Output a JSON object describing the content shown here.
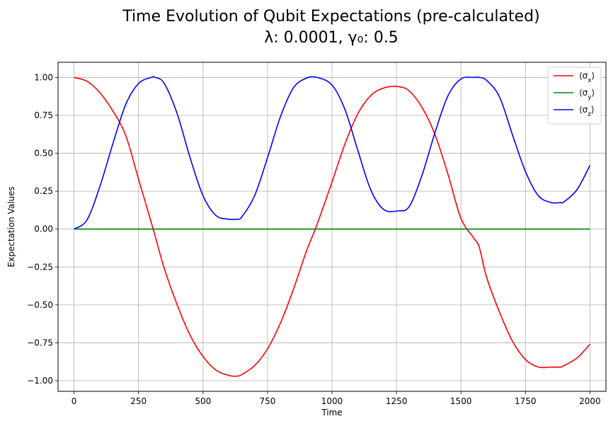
{
  "chart_data": {
    "type": "line",
    "title_line1": "Time Evolution of Qubit Expectations (pre-calculated)",
    "title_line2": "λ: 0.0001, γ₀: 0.5",
    "xlabel": "Time",
    "ylabel": "Expectation Values",
    "xlim": [
      -62,
      2062
    ],
    "ylim": [
      -1.07,
      1.1
    ],
    "xticks": [
      0,
      250,
      500,
      750,
      1000,
      1250,
      1500,
      1750,
      2000
    ],
    "yticks": [
      -1.0,
      -0.75,
      -0.5,
      -0.25,
      0.0,
      0.25,
      0.5,
      0.75,
      1.0
    ],
    "xtick_labels": [
      "0",
      "250",
      "500",
      "750",
      "1000",
      "1250",
      "1500",
      "1750",
      "2000"
    ],
    "ytick_labels": [
      "−1.00",
      "−0.75",
      "−0.50",
      "−0.25",
      "0.00",
      "0.25",
      "0.50",
      "0.75",
      "1.00"
    ],
    "grid": true,
    "legend_position": "top-right",
    "x": [
      0,
      50,
      100,
      150,
      200,
      250,
      300,
      315,
      350,
      400,
      450,
      500,
      550,
      600,
      628,
      650,
      700,
      750,
      800,
      850,
      900,
      942,
      1000,
      1050,
      1100,
      1150,
      1200,
      1256,
      1300,
      1350,
      1400,
      1450,
      1500,
      1550,
      1571,
      1600,
      1650,
      1700,
      1750,
      1800,
      1850,
      1885,
      1900,
      1950,
      2000
    ],
    "series": [
      {
        "name": "⟨σx⟩",
        "symbol": "σ",
        "sub": "x",
        "color": "#ff0000",
        "values": [
          1.0,
          0.975,
          0.9,
          0.78,
          0.62,
          0.33,
          0.04,
          -0.05,
          -0.26,
          -0.5,
          -0.7,
          -0.84,
          -0.93,
          -0.965,
          -0.97,
          -0.96,
          -0.9,
          -0.79,
          -0.62,
          -0.4,
          -0.15,
          0.03,
          0.31,
          0.56,
          0.76,
          0.88,
          0.93,
          0.94,
          0.91,
          0.8,
          0.62,
          0.36,
          0.07,
          -0.06,
          -0.12,
          -0.32,
          -0.55,
          -0.74,
          -0.86,
          -0.91,
          -0.91,
          -0.91,
          -0.9,
          -0.85,
          -0.76
        ]
      },
      {
        "name": "⟨σy⟩",
        "symbol": "σ",
        "sub": "y",
        "color": "#008000",
        "values": [
          0,
          0,
          0,
          0,
          0,
          0,
          0,
          0,
          0,
          0,
          0,
          0,
          0,
          0,
          0,
          0,
          0,
          0,
          0,
          0,
          0,
          0,
          0,
          0,
          0,
          0,
          0,
          0,
          0,
          0,
          0,
          0,
          0,
          0,
          0,
          0,
          0,
          0,
          0,
          0,
          0,
          0,
          0,
          0,
          0
        ]
      },
      {
        "name": "⟨σz⟩",
        "symbol": "σ",
        "sub": "z",
        "color": "#0000ff",
        "values": [
          0.0,
          0.06,
          0.28,
          0.56,
          0.82,
          0.96,
          1.0,
          1.0,
          0.96,
          0.76,
          0.47,
          0.22,
          0.09,
          0.065,
          0.065,
          0.08,
          0.22,
          0.47,
          0.74,
          0.93,
          0.995,
          1.0,
          0.95,
          0.79,
          0.52,
          0.26,
          0.13,
          0.12,
          0.15,
          0.36,
          0.64,
          0.88,
          0.99,
          1.0,
          1.0,
          0.98,
          0.87,
          0.62,
          0.38,
          0.22,
          0.175,
          0.175,
          0.18,
          0.26,
          0.42
        ]
      }
    ]
  }
}
